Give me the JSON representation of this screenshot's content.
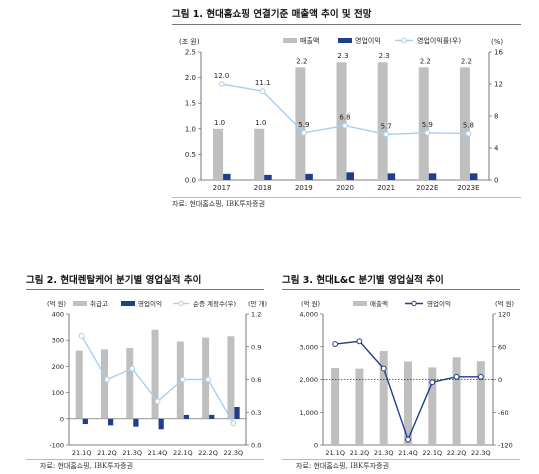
{
  "figure1": {
    "title": "그림 1. 현대홈쇼핑 연결기준 매출액 추이 및 전망",
    "source": "자료: 현대홈쇼핑, IBK투자증권",
    "chart_data": {
      "type": "bar",
      "categories": [
        "2017",
        "2018",
        "2019",
        "2020",
        "2021",
        "2022E",
        "2023E"
      ],
      "series": [
        {
          "name": "매출액",
          "values": [
            1.0,
            1.0,
            2.2,
            2.3,
            2.3,
            2.2,
            2.2
          ],
          "color": "#bfbfbf",
          "axis": "left"
        },
        {
          "name": "영업이익",
          "values": [
            0.12,
            0.1,
            0.12,
            0.15,
            0.13,
            0.13,
            0.13
          ],
          "color": "#1f3e8c",
          "axis": "left"
        },
        {
          "name": "영업이익률(우)",
          "values": [
            12.0,
            11.1,
            5.9,
            6.8,
            5.7,
            5.9,
            5.8
          ],
          "color": "#a9cff0",
          "axis": "right",
          "type": "line"
        }
      ],
      "bar_labels": [
        "1.0",
        "1.0",
        "2.2",
        "2.3",
        "2.3",
        "2.2",
        "2.2"
      ],
      "line_labels": [
        "12.0",
        "11.1",
        "5.9",
        "6.8",
        "5.7",
        "5.9",
        "5.8"
      ],
      "ylabel_left": "(조 원)",
      "ylabel_right": "(%)",
      "ylim_left": [
        0,
        2.5
      ],
      "ylim_right": [
        0,
        16
      ],
      "yticks_left": [
        "0.0",
        "0.5",
        "1.0",
        "1.5",
        "2.0",
        "2.5"
      ],
      "yticks_right": [
        "0",
        "4",
        "8",
        "12",
        "16"
      ],
      "legend_position": "top-right"
    }
  },
  "figure2": {
    "title": "그림 2. 현대렌탈케어 분기별 영업실적 추이",
    "source": "자료: 현대홈쇼핑, IBK투자증권",
    "chart_data": {
      "type": "bar",
      "categories": [
        "21.1Q",
        "21.2Q",
        "21.3Q",
        "21.4Q",
        "22.1Q",
        "22.2Q",
        "22.3Q"
      ],
      "series": [
        {
          "name": "취급고",
          "values": [
            260,
            265,
            270,
            340,
            295,
            310,
            315
          ],
          "color": "#bfbfbf",
          "axis": "left"
        },
        {
          "name": "영업이익",
          "values": [
            -20,
            -25,
            -30,
            -40,
            15,
            15,
            45
          ],
          "color": "#1f3e8c",
          "axis": "left"
        },
        {
          "name": "순증 계정수(우)",
          "values": [
            1.0,
            0.6,
            0.7,
            0.4,
            0.6,
            0.6,
            0.2
          ],
          "color": "#a9cff0",
          "axis": "right",
          "type": "line"
        }
      ],
      "ylabel_left": "(억 원)",
      "ylabel_right": "(만 개)",
      "ylim_left": [
        -100,
        400
      ],
      "ylim_right": [
        0,
        1.2
      ],
      "yticks_left": [
        "-100",
        "0",
        "100",
        "200",
        "300",
        "400"
      ],
      "yticks_right": [
        "0.0",
        "0.3",
        "0.6",
        "0.9",
        "1.2"
      ],
      "legend_position": "top"
    }
  },
  "figure3": {
    "title": "그림 3. 현대L&C 분기별 영업실적 추이",
    "source": "자료: 현대홈쇼핑, IBK투자증권",
    "chart_data": {
      "type": "bar",
      "categories": [
        "21.1Q",
        "21.2Q",
        "21.3Q",
        "21.4Q",
        "22.1Q",
        "22.2Q",
        "22.3Q"
      ],
      "series": [
        {
          "name": "매출액",
          "values": [
            2350,
            2330,
            2870,
            2550,
            2370,
            2680,
            2560
          ],
          "color": "#bfbfbf",
          "axis": "left"
        },
        {
          "name": "영업이익",
          "values": [
            65,
            70,
            20,
            -110,
            -5,
            5,
            5
          ],
          "color": "#1f3e8c",
          "axis": "right",
          "type": "line"
        }
      ],
      "ylabel_left": "(억 원)",
      "ylabel_right": "(억 원)",
      "ylim_left": [
        0,
        4000
      ],
      "ylim_right": [
        -120,
        120
      ],
      "yticks_left": [
        "0",
        "1,000",
        "2,000",
        "3,000",
        "4,000"
      ],
      "yticks_right": [
        "-120",
        "-60",
        "0",
        "60",
        "120"
      ],
      "legend_position": "top"
    }
  }
}
